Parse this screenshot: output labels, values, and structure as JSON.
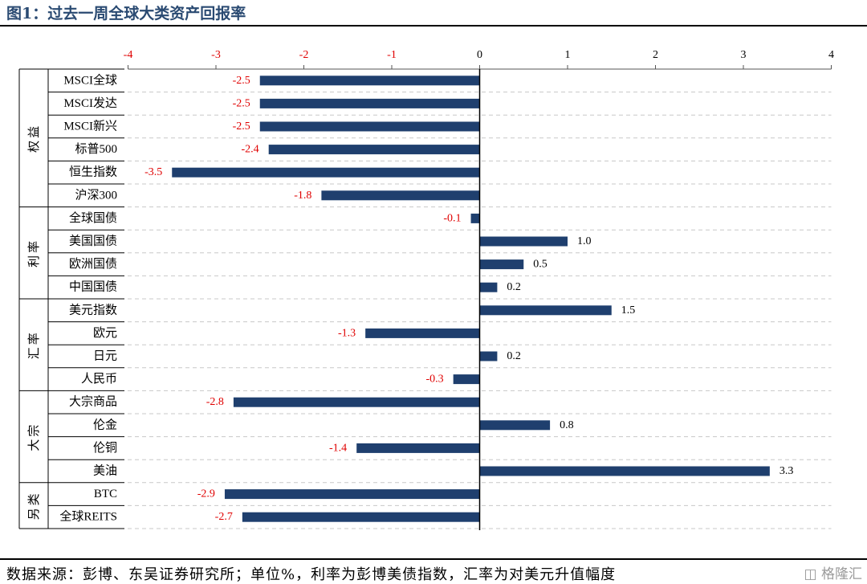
{
  "title": "图1：过去一周全球大类资产回报率",
  "source": "数据来源：彭博、东吴证券研究所；单位%，利率为彭博美债指数，汇率为对美元升值幅度",
  "watermark": "格隆汇",
  "colors": {
    "bar": "#1f3f6e",
    "negative_label": "#e00000",
    "axis_tick": "#e00000",
    "grid": "#c8c8c8"
  },
  "chart_data": {
    "type": "bar",
    "orientation": "horizontal",
    "xlim": [
      -4,
      4
    ],
    "xticks": [
      "-4",
      "-3",
      "-2",
      "-1",
      "0",
      "1",
      "2",
      "3",
      "4"
    ],
    "xtick_values": [
      -4,
      -3,
      -2,
      -1,
      0,
      1,
      2,
      3,
      4
    ],
    "grid": true,
    "groups": [
      {
        "name": "权益",
        "categories": [
          "MSCI全球",
          "MSCI发达",
          "MSCI新兴",
          "标普500",
          "恒生指数",
          "沪深300"
        ]
      },
      {
        "name": "利率",
        "categories": [
          "全球国债",
          "美国国债",
          "欧洲国债",
          "中国国债"
        ]
      },
      {
        "name": "汇率",
        "categories": [
          "美元指数",
          "欧元",
          "日元",
          "人民币"
        ]
      },
      {
        "name": "大宗",
        "categories": [
          "大宗商品",
          "伦金",
          "伦铜",
          "美油"
        ]
      },
      {
        "name": "另类",
        "categories": [
          "BTC",
          "全球REITS"
        ]
      }
    ],
    "values": [
      -2.5,
      -2.5,
      -2.5,
      -2.4,
      -3.5,
      -1.8,
      -0.1,
      1.0,
      0.5,
      0.2,
      1.5,
      -1.3,
      0.2,
      -0.3,
      -2.8,
      0.8,
      -1.4,
      3.3,
      -2.9,
      -2.7
    ],
    "labels": [
      "-2.5",
      "-2.5",
      "-2.5",
      "-2.4",
      "-3.5",
      "-1.8",
      "-0.1",
      "1.0",
      "0.5",
      "0.2",
      "1.5",
      "-1.3",
      "0.2",
      "-0.3",
      "-2.8",
      "0.8",
      "-1.4",
      "3.3",
      "-2.9",
      "-2.7"
    ]
  }
}
